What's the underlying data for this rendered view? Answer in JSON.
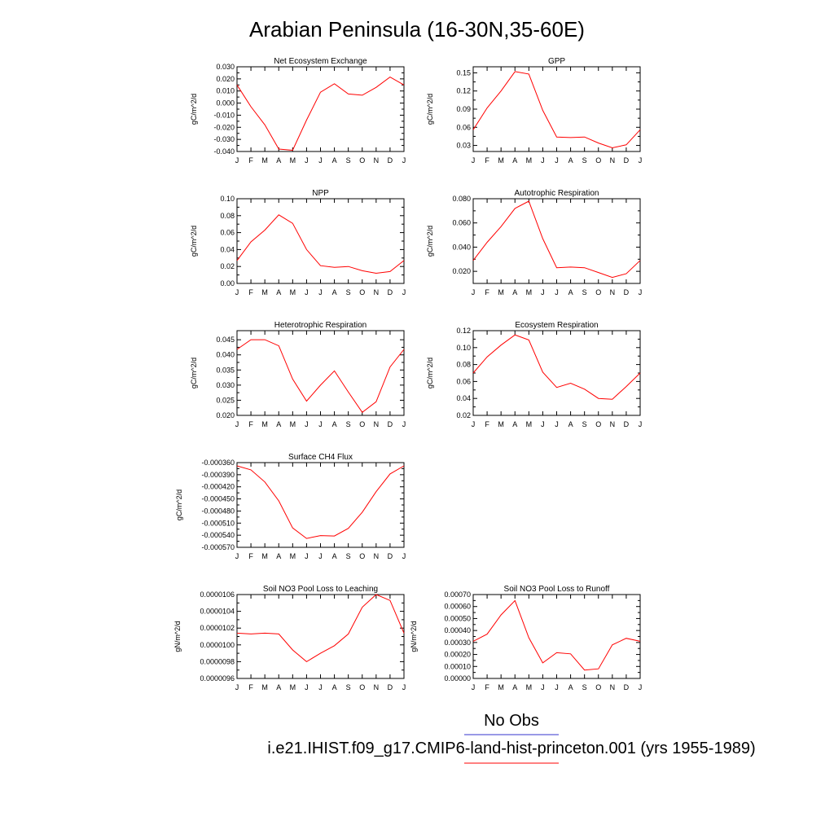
{
  "page_title": "Arabian Peninsula (16-30N,35-60E)",
  "months": [
    "J",
    "F",
    "M",
    "A",
    "M",
    "J",
    "J",
    "A",
    "S",
    "O",
    "N",
    "D",
    "J"
  ],
  "colors": {
    "line": "#ff0000",
    "legend_obs": "#3333cc",
    "legend_model": "#ff0000",
    "frame": "#000000"
  },
  "legend": {
    "obs_label": "No Obs",
    "model_label": "i.e21.IHIST.f09_g17.CMIP6-land-hist-princeton.001 (yrs 1955-1989)"
  },
  "chart_data": [
    {
      "type": "line",
      "title": "Net Ecosystem Exchange",
      "ylabel": "gC/m^2/d",
      "ylim": [
        -0.04,
        0.03
      ],
      "yticks": [
        0.03,
        0.02,
        0.01,
        0.0,
        -0.01,
        -0.02,
        -0.03,
        -0.04
      ],
      "ytick_labels": [
        "0.030",
        "0.020",
        "0.010",
        "0.000",
        "-0.010",
        "-0.020",
        "-0.030",
        "-0.040"
      ],
      "values": [
        0.015,
        -0.003,
        -0.018,
        -0.038,
        -0.039,
        -0.014,
        0.009,
        0.016,
        0.0075,
        0.0065,
        0.013,
        0.0215,
        0.015
      ]
    },
    {
      "type": "line",
      "title": "GPP",
      "ylabel": "gC/m^2/d",
      "ylim": [
        0.02,
        0.16
      ],
      "yticks": [
        0.15,
        0.12,
        0.09,
        0.06,
        0.03
      ],
      "ytick_labels": [
        "0.15",
        "0.12",
        "0.09",
        "0.06",
        "0.03"
      ],
      "values": [
        0.056,
        0.092,
        0.12,
        0.152,
        0.148,
        0.088,
        0.044,
        0.043,
        0.044,
        0.034,
        0.026,
        0.031,
        0.056
      ]
    },
    {
      "type": "line",
      "title": "NPP",
      "ylabel": "gC/m^2/d",
      "ylim": [
        0.0,
        0.1
      ],
      "yticks": [
        0.1,
        0.08,
        0.06,
        0.04,
        0.02,
        0.0
      ],
      "ytick_labels": [
        "0.10",
        "0.08",
        "0.06",
        "0.04",
        "0.02",
        "0.00"
      ],
      "values": [
        0.027,
        0.049,
        0.063,
        0.081,
        0.071,
        0.04,
        0.021,
        0.019,
        0.02,
        0.015,
        0.012,
        0.014,
        0.027
      ]
    },
    {
      "type": "line",
      "title": "Autotrophic Respiration",
      "ylabel": "gC/m^2/d",
      "ylim": [
        0.01,
        0.08
      ],
      "yticks": [
        0.08,
        0.06,
        0.04,
        0.02
      ],
      "ytick_labels": [
        "0.080",
        "0.060",
        "0.040",
        "0.020"
      ],
      "values": [
        0.029,
        0.044,
        0.057,
        0.072,
        0.078,
        0.047,
        0.023,
        0.0235,
        0.023,
        0.019,
        0.015,
        0.018,
        0.029
      ]
    },
    {
      "type": "line",
      "title": "Heterotrophic Respiration",
      "ylabel": "gC/m^2/d",
      "ylim": [
        0.02,
        0.048
      ],
      "yticks": [
        0.045,
        0.04,
        0.035,
        0.03,
        0.025,
        0.02
      ],
      "ytick_labels": [
        "0.045",
        "0.040",
        "0.035",
        "0.030",
        "0.025",
        "0.020"
      ],
      "values": [
        0.0418,
        0.045,
        0.045,
        0.043,
        0.032,
        0.0247,
        0.03,
        0.0347,
        0.0277,
        0.021,
        0.0245,
        0.036,
        0.0418
      ]
    },
    {
      "type": "line",
      "title": "Ecosystem Respiration",
      "ylabel": "gC/m^2/d",
      "ylim": [
        0.02,
        0.12
      ],
      "yticks": [
        0.12,
        0.1,
        0.08,
        0.06,
        0.04,
        0.02
      ],
      "ytick_labels": [
        "0.12",
        "0.10",
        "0.08",
        "0.06",
        "0.04",
        "0.02"
      ],
      "values": [
        0.07,
        0.089,
        0.103,
        0.115,
        0.109,
        0.071,
        0.053,
        0.058,
        0.051,
        0.04,
        0.039,
        0.054,
        0.07
      ]
    },
    {
      "type": "line",
      "title": "Surface CH4 Flux",
      "ylabel": "gC/m^2/d",
      "ylim": [
        -0.00057,
        -0.00036
      ],
      "yticks": [
        -0.00036,
        -0.00039,
        -0.00042,
        -0.00045,
        -0.00048,
        -0.00051,
        -0.00054,
        -0.00057
      ],
      "ytick_labels": [
        "-0.000360",
        "-0.000390",
        "-0.000420",
        "-0.000450",
        "-0.000480",
        "-0.000510",
        "-0.000540",
        "-0.000570"
      ],
      "values": [
        -0.000368,
        -0.000378,
        -0.000408,
        -0.000455,
        -0.000522,
        -0.000548,
        -0.000541,
        -0.000542,
        -0.000523,
        -0.000483,
        -0.000432,
        -0.000388,
        -0.000368
      ]
    },
    {
      "type": "line",
      "title": "Soil NO3 Pool Loss to Leaching",
      "ylabel": "gN/m^2/d",
      "ylim": [
        9.6e-06,
        1.06e-05
      ],
      "yticks": [
        1.06e-05,
        1.04e-05,
        1.02e-05,
        1e-05,
        9.8e-06,
        9.6e-06
      ],
      "ytick_labels": [
        "0.0000106",
        "0.0000104",
        "0.0000102",
        "0.0000100",
        "0.0000098",
        "0.0000096"
      ],
      "values": [
        1.014e-05,
        1.013e-05,
        1.014e-05,
        1.013e-05,
        9.94e-06,
        9.8e-06,
        9.9e-06,
        9.99e-06,
        1.013e-05,
        1.045e-05,
        1.06e-05,
        1.053e-05,
        1.014e-05
      ]
    },
    {
      "type": "line",
      "title": "Soil NO3 Pool Loss to Runoff",
      "ylabel": "gN/m^2/d",
      "ylim": [
        0.0,
        0.0007
      ],
      "yticks": [
        0.0007,
        0.0006,
        0.0005,
        0.0004,
        0.0003,
        0.0002,
        0.0001,
        0.0
      ],
      "ytick_labels": [
        "0.00070",
        "0.00060",
        "0.00050",
        "0.00040",
        "0.00030",
        "0.00020",
        "0.00010",
        "0.00000"
      ],
      "values": [
        0.00031,
        0.00037,
        0.00053,
        0.00065,
        0.00034,
        0.00013,
        0.000215,
        0.000205,
        7e-05,
        8e-05,
        0.00028,
        0.000335,
        0.00031
      ]
    }
  ]
}
